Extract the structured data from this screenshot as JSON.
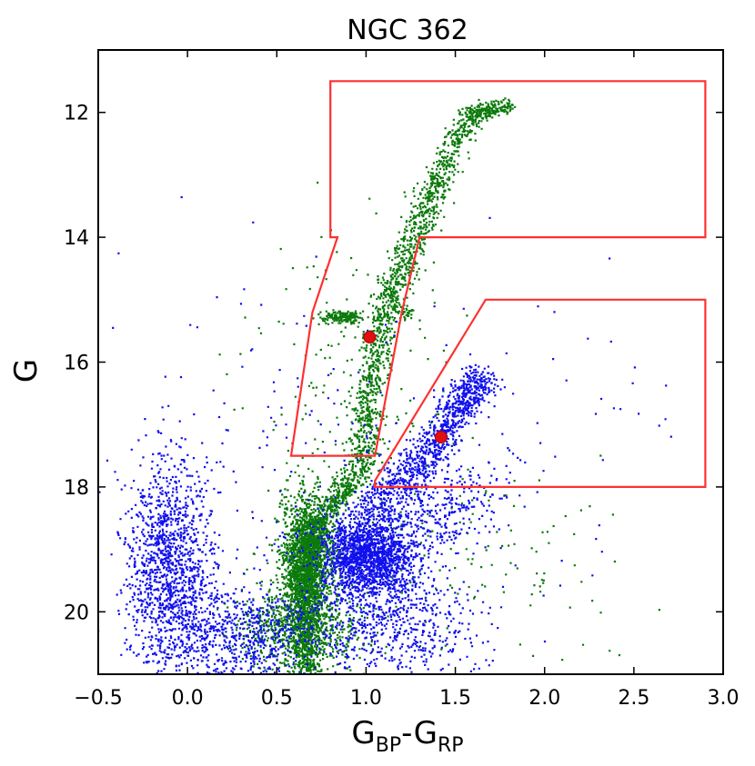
{
  "chart_data": {
    "type": "scatter",
    "title": "NGC 362",
    "xlabel": {
      "base": "G",
      "sub1": "BP",
      "dash": "-",
      "base2": "G",
      "sub2": "RP"
    },
    "ylabel": "G",
    "xlim": [
      -0.5,
      3.0
    ],
    "ylim": [
      21.0,
      11.0
    ],
    "y_inverted": true,
    "x_ticks": [
      "−0.5",
      "0.0",
      "0.5",
      "1.0",
      "1.5",
      "2.0",
      "2.5",
      "3.0"
    ],
    "x_tick_values": [
      -0.5,
      0.0,
      0.5,
      1.0,
      1.5,
      2.0,
      2.5,
      3.0
    ],
    "y_ticks": [
      "12",
      "14",
      "16",
      "18",
      "20"
    ],
    "y_tick_values": [
      12,
      14,
      16,
      18,
      20
    ],
    "grid": false,
    "legend": "none",
    "colors": {
      "frame": "#000000",
      "blue_points": "#1010ee",
      "green_points": "#0b7a0b",
      "selection": "#ff2a2a"
    },
    "selection_regions": [
      {
        "name": "upper",
        "color": "#ff3030",
        "polygon": [
          [
            0.8,
            11.5
          ],
          [
            2.9,
            11.5
          ],
          [
            2.9,
            14.0
          ],
          [
            1.3,
            14.0
          ],
          [
            1.2,
            15.2
          ],
          [
            1.05,
            17.5
          ],
          [
            0.58,
            17.5
          ],
          [
            0.7,
            15.2
          ],
          [
            0.84,
            14.0
          ],
          [
            0.8,
            14.0
          ]
        ]
      },
      {
        "name": "lower",
        "color": "#ff3030",
        "polygon": [
          [
            1.67,
            15.0
          ],
          [
            2.9,
            15.0
          ],
          [
            2.9,
            18.0
          ],
          [
            1.05,
            18.0
          ],
          [
            1.05,
            17.9
          ]
        ]
      }
    ],
    "highlight_points": [
      {
        "x": 1.02,
        "y": 15.6,
        "color": "#e01010"
      },
      {
        "x": 1.42,
        "y": 17.2,
        "color": "#e01010"
      }
    ],
    "series": [
      {
        "color": "#0b7a0b",
        "role": "member stars",
        "clusters": [
          {
            "type": "sequence",
            "points": [
              [
                0.67,
                21.0
              ],
              [
                0.66,
                20.5
              ],
              [
                0.65,
                20.0
              ],
              [
                0.66,
                19.4
              ],
              [
                0.68,
                18.9
              ],
              [
                0.72,
                18.6
              ],
              [
                0.85,
                18.2
              ],
              [
                0.96,
                17.8
              ],
              [
                1.0,
                17.2
              ],
              [
                1.02,
                16.5
              ],
              [
                1.05,
                15.8
              ],
              [
                1.12,
                15.0
              ],
              [
                1.2,
                14.5
              ],
              [
                1.3,
                13.8
              ],
              [
                1.38,
                13.2
              ],
              [
                1.5,
                12.5
              ],
              [
                1.62,
                12.0
              ],
              [
                1.78,
                11.9
              ]
            ],
            "count": 2600,
            "spread_x": 0.045,
            "spread_y": 0.06
          },
          {
            "type": "blob",
            "cx": 0.67,
            "cy": 19.2,
            "sx": 0.07,
            "sy": 0.55,
            "count": 1700
          },
          {
            "type": "blob",
            "cx": 0.62,
            "cy": 20.3,
            "sx": 0.16,
            "sy": 0.35,
            "count": 800
          },
          {
            "type": "blob",
            "cx": 0.87,
            "cy": 15.28,
            "sx": 0.06,
            "sy": 0.05,
            "count": 170
          },
          {
            "type": "blob",
            "cx": 1.2,
            "cy": 15.2,
            "sx": 0.04,
            "sy": 0.06,
            "count": 40
          },
          {
            "type": "blob",
            "cx": 0.9,
            "cy": 16.2,
            "sx": 0.28,
            "sy": 1.3,
            "count": 180
          },
          {
            "type": "blob",
            "cx": 1.5,
            "cy": 19.2,
            "sx": 0.45,
            "sy": 1.0,
            "count": 160
          }
        ]
      },
      {
        "color": "#1010ee",
        "role": "field stars",
        "clusters": [
          {
            "type": "blob",
            "cx": 1.02,
            "cy": 19.1,
            "sx": 0.13,
            "sy": 0.35,
            "count": 1800
          },
          {
            "type": "blob",
            "cx": -0.1,
            "cy": 19.3,
            "sx": 0.12,
            "sy": 0.85,
            "count": 1300
          },
          {
            "type": "blob",
            "cx": 0.3,
            "cy": 20.4,
            "sx": 0.22,
            "sy": 0.4,
            "count": 700
          },
          {
            "type": "blob",
            "cx": 1.15,
            "cy": 20.2,
            "sx": 0.25,
            "sy": 0.45,
            "count": 600
          },
          {
            "type": "sequence",
            "points": [
              [
                1.05,
                18.4
              ],
              [
                1.2,
                17.9
              ],
              [
                1.35,
                17.4
              ],
              [
                1.48,
                16.9
              ],
              [
                1.58,
                16.5
              ],
              [
                1.65,
                16.2
              ]
            ],
            "count": 900,
            "spread_x": 0.06,
            "spread_y": 0.12
          },
          {
            "type": "blob",
            "cx": 1.4,
            "cy": 18.2,
            "sx": 0.18,
            "sy": 0.5,
            "count": 400
          },
          {
            "type": "blob",
            "cx": 0.8,
            "cy": 18.0,
            "sx": 0.55,
            "sy": 1.6,
            "count": 220
          },
          {
            "type": "blob",
            "cx": 2.2,
            "cy": 16.8,
            "sx": 0.35,
            "sy": 1.4,
            "count": 30
          }
        ]
      }
    ]
  }
}
